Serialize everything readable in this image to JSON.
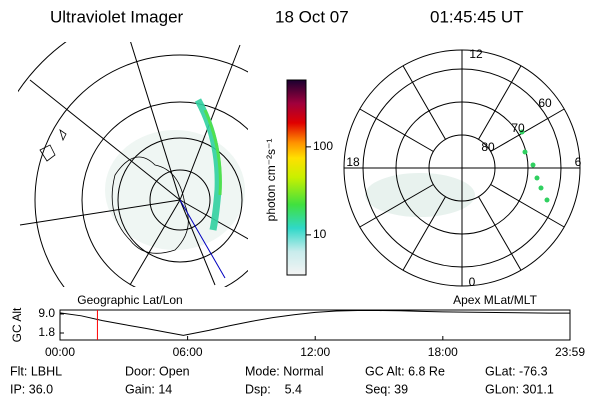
{
  "header": {
    "title": "Ultraviolet Imager",
    "date": "18 Oct 07",
    "time": "01:45:45 UT"
  },
  "map": {
    "label": "Geographic Lat/Lon"
  },
  "polar": {
    "label": "Apex MLat/MLT",
    "hour_labels": [
      "12",
      "18",
      "6",
      "0"
    ],
    "lat_labels": [
      "60",
      "70",
      "80"
    ]
  },
  "chart_data": [
    {
      "type": "colorbar",
      "ylabel": "photon cm⁻²s⁻¹",
      "log_scale": true,
      "ylim": [
        3.5,
        575
      ],
      "yticks": [
        10,
        100
      ]
    },
    {
      "type": "line",
      "ylabel": "GC Alt",
      "color": "#000000",
      "x": [
        0,
        1,
        2,
        3,
        4,
        5,
        5.8,
        7,
        8,
        9,
        10,
        11,
        12,
        13,
        14,
        15,
        16,
        17,
        18,
        19,
        20,
        21,
        22,
        23,
        23.98
      ],
      "values": [
        9.4,
        8.3,
        6.5,
        5.0,
        3.6,
        2.1,
        0.9,
        2.8,
        4.6,
        6.2,
        7.6,
        8.7,
        9.6,
        10.1,
        10.3,
        10.3,
        10.2,
        10.0,
        9.8,
        9.7,
        9.6,
        9.5,
        9.4,
        9.3,
        9.3
      ],
      "xlim": [
        0,
        23.98
      ],
      "ylim": [
        -0.85,
        10.5
      ],
      "xticks": [
        {
          "value": 0,
          "label": "00:00"
        },
        {
          "value": 6,
          "label": "06:00"
        },
        {
          "value": 12,
          "label": "12:00"
        },
        {
          "value": 18,
          "label": "18:00"
        },
        {
          "value": 23.98,
          "label": "23:59"
        }
      ],
      "yticks": [
        1.8,
        {
          "value": 9,
          "label": "9.0"
        }
      ],
      "marker_x": 1.76,
      "marker_color": "#ff0000"
    }
  ],
  "info": [
    [
      "Flt: LBHL",
      "Door: Open",
      "Mode: Normal",
      "GC Alt: 6.8 Re",
      "GLat: -76.3"
    ],
    [
      "IP: 36.0",
      "Gain: 14",
      "Dsp:    5.4",
      "Seq: 39",
      "GLon: 301.1"
    ]
  ]
}
